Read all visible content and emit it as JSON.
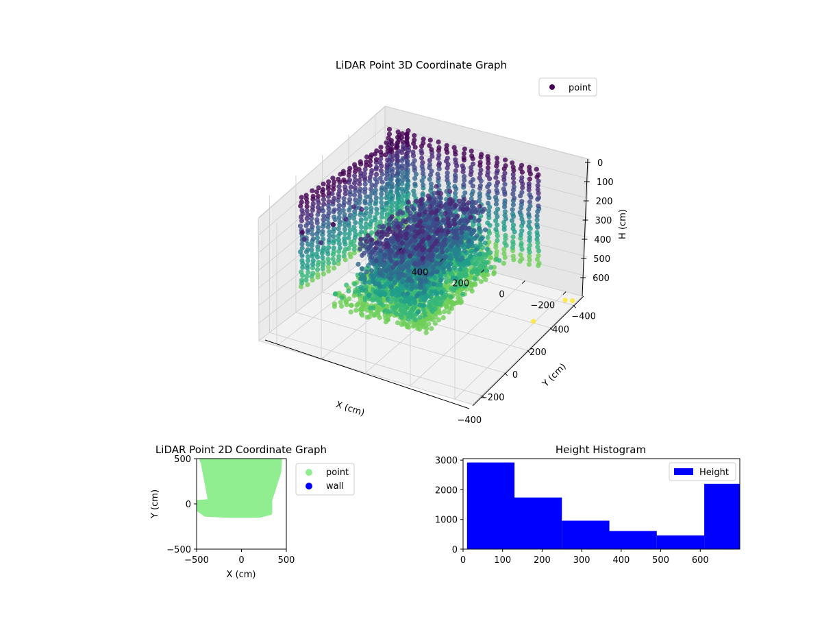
{
  "chart_data": [
    {
      "type": "scatter",
      "projection": "3d",
      "title": "LiDAR Point 3D Coordinate Graph",
      "xlabel": "X (cm)",
      "ylabel": "Y (cm)",
      "zlabel": "H (cm)",
      "xticks": [
        "−400",
        "−200",
        "0",
        "200",
        "400"
      ],
      "yticks": [
        "400",
        "200",
        "0",
        "−200",
        "−400"
      ],
      "zticks": [
        "0",
        "100",
        "200",
        "300",
        "400",
        "500",
        "600"
      ],
      "xlim": [
        -480,
        480
      ],
      "ylim": [
        -480,
        480
      ],
      "zlim": [
        700,
        0
      ],
      "z_inverted": true,
      "colormap": "viridis",
      "legend": {
        "entries": [
          "point"
        ],
        "placement": "upper-right"
      },
      "grid": true,
      "series": [
        {
          "name": "point",
          "points_sample": [
            {
              "x": -440,
              "y": 300,
              "h": 80
            },
            {
              "x": -420,
              "y": 320,
              "h": 60
            },
            {
              "x": -380,
              "y": 260,
              "h": 120
            },
            {
              "x": -300,
              "y": 250,
              "h": 60
            },
            {
              "x": -200,
              "y": 250,
              "h": 90
            },
            {
              "x": -120,
              "y": 260,
              "h": 70
            },
            {
              "x": -60,
              "y": 260,
              "h": 120
            },
            {
              "x": 200,
              "y": -400,
              "h": 690
            },
            {
              "x": 420,
              "y": -430,
              "h": 700
            },
            {
              "x": 430,
              "y": -460,
              "h": 700
            }
          ],
          "h_range": [
            0,
            700
          ]
        }
      ]
    },
    {
      "type": "scatter",
      "title": "LiDAR Point 2D Coordinate Graph",
      "xlabel": "X (cm)",
      "ylabel": "Y (cm)",
      "xlim": [
        -500,
        500
      ],
      "ylim": [
        -500,
        500
      ],
      "xticks": [
        "−500",
        "0",
        "500"
      ],
      "yticks": [
        "500",
        "0",
        "−500"
      ],
      "legend": {
        "entries": [
          "point",
          "wall"
        ],
        "placement": "outside-right"
      },
      "colors": {
        "point": "#90ee90",
        "wall": "#0000ff"
      },
      "series": [
        {
          "name": "point",
          "region_outline": [
            {
              "x": -500,
              "y": -50
            },
            {
              "x": -500,
              "y": 20
            },
            {
              "x": -350,
              "y": 30
            },
            {
              "x": -430,
              "y": 450
            },
            {
              "x": -450,
              "y": 500
            },
            {
              "x": 430,
              "y": 500
            },
            {
              "x": 420,
              "y": 350
            },
            {
              "x": 320,
              "y": 40
            },
            {
              "x": 320,
              "y": -100
            },
            {
              "x": 200,
              "y": -130
            },
            {
              "x": -150,
              "y": -130
            },
            {
              "x": -400,
              "y": -120
            }
          ]
        },
        {
          "name": "wall",
          "points": []
        }
      ]
    },
    {
      "type": "histogram",
      "title": "Height Histogram",
      "xlim": [
        0,
        700
      ],
      "ylim": [
        0,
        3050
      ],
      "xticks": [
        "0",
        "100",
        "200",
        "300",
        "400",
        "500",
        "600"
      ],
      "yticks": [
        "0",
        "1000",
        "2000",
        "3000"
      ],
      "legend": {
        "entries": [
          "Height"
        ],
        "placement": "top-right"
      },
      "colors": {
        "bars": "#0000ff"
      },
      "bins": [
        {
          "from": 10,
          "to": 130,
          "count": 2920
        },
        {
          "from": 130,
          "to": 250,
          "count": 1740
        },
        {
          "from": 250,
          "to": 370,
          "count": 960
        },
        {
          "from": 370,
          "to": 490,
          "count": 610
        },
        {
          "from": 490,
          "to": 610,
          "count": 460
        },
        {
          "from": 610,
          "to": 700,
          "count": 2200
        }
      ]
    }
  ]
}
